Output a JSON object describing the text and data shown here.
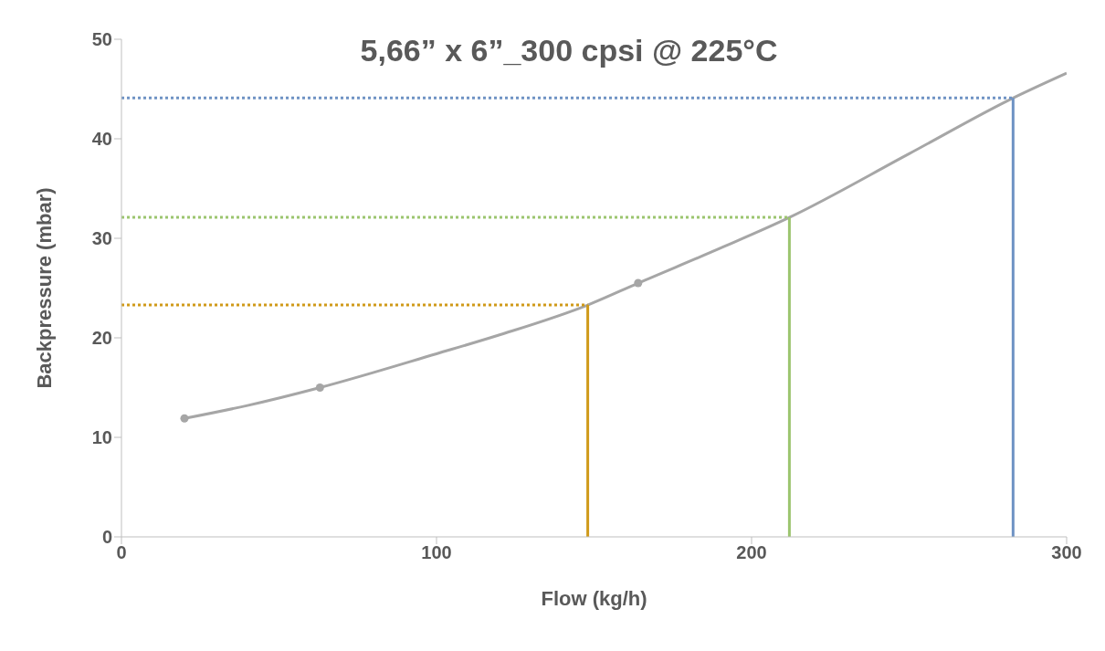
{
  "chart_data": {
    "type": "line",
    "title": "5,66” x 6”_300 cpsi @ 225°C",
    "xlabel": "Flow (kg/h)",
    "ylabel": "Backpressure (mbar)",
    "xlim": [
      0,
      300
    ],
    "xticks": [
      0,
      100,
      200,
      300
    ],
    "ylim": [
      0,
      50
    ],
    "yticks": [
      0,
      10,
      20,
      30,
      40,
      50
    ],
    "series": [
      {
        "marker": "none",
        "line_style": "solid",
        "color": "#a6a6a6",
        "x": [
          20,
          40,
          63,
          100,
          120,
          148,
          164,
          190,
          212,
          250,
          283,
          300
        ],
        "values": [
          11.9,
          13.2,
          15,
          18.4,
          20.3,
          23.3,
          25.5,
          29,
          32.1,
          38.5,
          44.1,
          46.6
        ]
      },
      {
        "type": "scatter",
        "marker": "circle",
        "color": "#a6a6a6",
        "x": [
          20,
          63,
          164
        ],
        "values": [
          11.9,
          15,
          25.5
        ]
      },
      {
        "marker": "none",
        "line_style": "dotted",
        "color": "#d09a1a",
        "x": [
          0,
          148
        ],
        "values": [
          23.3,
          23.3
        ]
      },
      {
        "marker": "none",
        "line_style": "solid",
        "color": "#d09a1a",
        "x": [
          148,
          148
        ],
        "values": [
          0,
          23.3
        ]
      },
      {
        "marker": "none",
        "line_style": "dotted",
        "color": "#9cc56f",
        "x": [
          0,
          212
        ],
        "values": [
          32.1,
          32.1
        ]
      },
      {
        "marker": "none",
        "line_style": "solid",
        "color": "#9cc56f",
        "x": [
          212,
          212
        ],
        "values": [
          0,
          32.1
        ]
      },
      {
        "marker": "none",
        "line_style": "dotted",
        "color": "#6f93c4",
        "x": [
          0,
          283
        ],
        "values": [
          44.1,
          44.1
        ]
      },
      {
        "marker": "none",
        "line_style": "solid",
        "color": "#6f93c4",
        "x": [
          283,
          283
        ],
        "values": [
          0,
          44.1
        ]
      }
    ]
  }
}
